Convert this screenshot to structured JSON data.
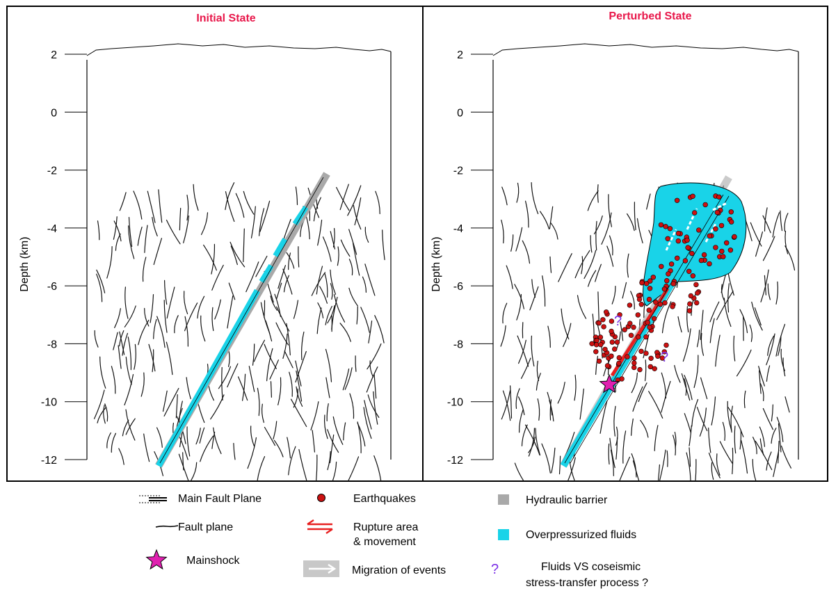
{
  "panels": [
    {
      "id": "left",
      "title": "Initial State",
      "ylabel": "Depth (km)"
    },
    {
      "id": "right",
      "title": "Perturbed State",
      "ylabel": "Depth (km)"
    }
  ],
  "depth_axis": {
    "ticks": [
      "2",
      "0",
      "-2",
      "-4",
      "-6",
      "-8",
      "-10",
      "-12"
    ]
  },
  "question_marks": [
    "?",
    "?"
  ],
  "legend": {
    "main_fault_plane": "Main Fault Plane",
    "fault_plane": "Fault plane",
    "mainshock": "Mainshock",
    "earthquakes": "Earthquakes",
    "rupture_line1": "Rupture area",
    "rupture_line2": "& movement",
    "migration": "Migration of events",
    "hydraulic_barrier": "Hydraulic barrier",
    "overpressurized": "Overpressurized fluids",
    "question_glyph": "?",
    "fluids_line1": "Fluids VS coseismic",
    "fluids_line2": "stress-transfer process ?"
  },
  "colors": {
    "title": "#e8174a",
    "fluids": "#19d3e8",
    "barrier": "#a9a9a9",
    "earthquake": "#cc1111",
    "rupture": "#e82020",
    "mainshock": "#e020b0",
    "question": "#7a2ee6",
    "migration_arrow": "#c8c8c8"
  }
}
